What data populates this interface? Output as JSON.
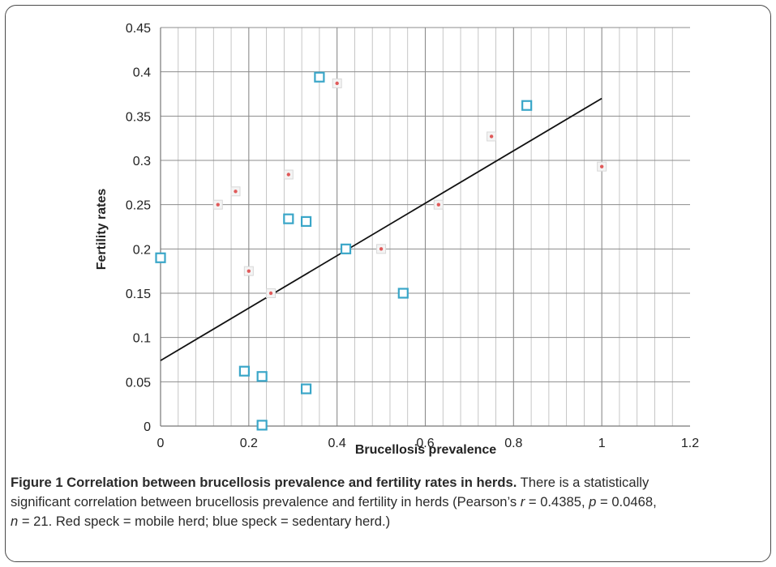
{
  "chart_data": {
    "type": "scatter",
    "title": "",
    "xlabel": "Brucellosis prevalence",
    "ylabel": "Fertility rates",
    "xlim": [
      0,
      1.2
    ],
    "ylim": [
      0,
      0.45
    ],
    "x_ticks": [
      "0",
      "0.2",
      "0.4",
      "0.6",
      "0.8",
      "1",
      "1.2"
    ],
    "y_ticks": [
      "0",
      "0.05",
      "0.1",
      "0.15",
      "0.2",
      "0.25",
      "0.3",
      "0.35",
      "0.4",
      "0.45"
    ],
    "grid": true,
    "series": [
      {
        "name": "mobile herd",
        "color": "#e05a5a",
        "marker": "dot",
        "x": [
          0.13,
          0.17,
          0.2,
          0.25,
          0.29,
          0.4,
          0.5,
          0.63,
          0.75,
          1.0
        ],
        "y": [
          0.25,
          0.265,
          0.175,
          0.15,
          0.284,
          0.387,
          0.2,
          0.25,
          0.327,
          0.293
        ]
      },
      {
        "name": "sedentary herd",
        "color": "#3aa6c8",
        "marker": "square",
        "x": [
          0.0,
          0.19,
          0.23,
          0.23,
          0.29,
          0.33,
          0.33,
          0.36,
          0.42,
          0.55,
          0.83
        ],
        "y": [
          0.19,
          0.062,
          0.056,
          0.001,
          0.234,
          0.231,
          0.042,
          0.394,
          0.2,
          0.15,
          0.362
        ]
      }
    ],
    "trendline": {
      "x": [
        0,
        1.0
      ],
      "y": [
        0.074,
        0.37
      ]
    }
  },
  "caption": {
    "title": "Figure 1 Correlation between brucellosis prevalence and fertility rates in herds.",
    "line1_rest": " There is a statistically",
    "line2a": "significant correlation between brucellosis prevalence and fertility in herds (Pearson’s ",
    "r_sym": "r",
    "line2b": " = 0.4385, ",
    "p_sym": "p",
    "line2c": " = 0.0468,",
    "n_sym": "n",
    "line3": " = 21. Red speck = mobile herd; blue speck = sedentary herd.)"
  }
}
